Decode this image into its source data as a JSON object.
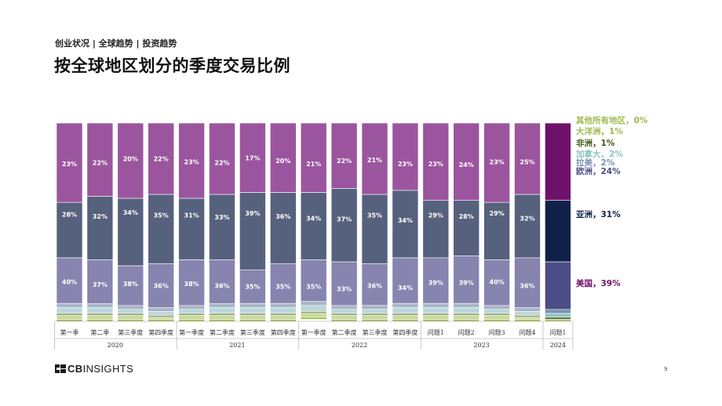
{
  "header": {
    "breadcrumb": "创业状况 | 全球趋势 | 投资趋势",
    "title": "按全球地区划分的季度交易比例"
  },
  "footer": {
    "logo_text_bold": "CB",
    "logo_text_rest": "INSIGHTS",
    "page_number": "9"
  },
  "chart_data": {
    "type": "bar",
    "stacked": true,
    "percent_stacked": true,
    "ylim": [
      0,
      100
    ],
    "categories": [
      "第一季",
      "第二季",
      "第三季度",
      "第四季度",
      "第一季度",
      "第二季度",
      "第三季度",
      "第四季度",
      "第一季度",
      "第二季度",
      "第三季度",
      "第四季度",
      "问题1",
      "问题2",
      "问题3",
      "问题4",
      "问题1"
    ],
    "years": [
      {
        "label": "2020",
        "start": 0,
        "end": 3
      },
      {
        "label": "2021",
        "start": 4,
        "end": 7
      },
      {
        "label": "2022",
        "start": 8,
        "end": 11
      },
      {
        "label": "2023",
        "start": 12,
        "end": 15
      },
      {
        "label": "2024",
        "start": 16,
        "end": 16
      }
    ],
    "series": [
      {
        "name": "美国",
        "color_past": "#9B559E",
        "color_last": "#6E1269",
        "values": [
          40,
          37,
          38,
          36,
          38,
          36,
          35,
          35,
          35,
          33,
          36,
          34,
          39,
          39,
          40,
          36,
          39
        ],
        "show_labels": true
      },
      {
        "name": "亚洲",
        "color_past": "#56617D",
        "color_last": "#0F2149",
        "values": [
          28,
          32,
          34,
          35,
          31,
          33,
          39,
          36,
          34,
          37,
          35,
          34,
          29,
          28,
          29,
          32,
          31
        ],
        "show_labels": true
      },
      {
        "name": "欧洲",
        "color_past": "#8784AF",
        "color_last": "#4B4D87",
        "values": [
          23,
          22,
          20,
          22,
          23,
          22,
          17,
          20,
          21,
          22,
          21,
          23,
          23,
          24,
          23,
          25,
          24
        ],
        "show_labels": true
      },
      {
        "name": "拉美",
        "color_past": "#A8B5C8",
        "color_last": "#7B93B3",
        "values": [
          2,
          2,
          2,
          2,
          2,
          2,
          2,
          2,
          2,
          2,
          2,
          2,
          2,
          2,
          2,
          2,
          2
        ],
        "show_labels": false
      },
      {
        "name": "加拿大",
        "color_past": "#BCD7DC",
        "color_last": "#95C6C9",
        "values": [
          3,
          3,
          2,
          2,
          2,
          3,
          3,
          3,
          3,
          2,
          2,
          3,
          3,
          3,
          2,
          2,
          2
        ],
        "show_labels": false
      },
      {
        "name": "非洲",
        "color_past": "#96A36C",
        "color_last": "#4F6B23",
        "values": [
          1,
          1,
          1,
          1,
          1,
          1,
          1,
          1,
          1,
          1,
          1,
          1,
          1,
          1,
          1,
          1,
          1
        ],
        "show_labels": false
      },
      {
        "name": "大洋洲",
        "color_past": "#C9D99C",
        "color_last": "#A8BE5A",
        "values": [
          2,
          2,
          2,
          1,
          2,
          2,
          2,
          2,
          2,
          2,
          2,
          2,
          2,
          2,
          2,
          1,
          1
        ],
        "show_labels": false
      },
      {
        "name": "其他所有地区",
        "color_past": "#9DBB4F",
        "color_last": "#9DBB4F",
        "values": [
          1,
          1,
          1,
          1,
          1,
          1,
          1,
          1,
          1,
          1,
          1,
          1,
          1,
          1,
          1,
          1,
          0
        ],
        "show_labels": false
      }
    ],
    "legend": [
      {
        "text": "其他所有地区，0%",
        "color": "#9DBB4F"
      },
      {
        "text": "大洋洲，1%",
        "color": "#9DBB4F"
      },
      {
        "text": "非洲，1%",
        "color": "#3E5A15"
      },
      {
        "text": "加拿大，2%",
        "color": "#8FC3C6"
      },
      {
        "text": "拉美，2%",
        "color": "#7B93B3"
      },
      {
        "text": "欧洲，24%",
        "color": "#4B4D87"
      },
      {
        "text": "亚洲，31%",
        "color": "#0F2149"
      },
      {
        "text": "美国，39%",
        "color": "#6E1269"
      }
    ],
    "legend_placement": "right",
    "grid": false
  }
}
